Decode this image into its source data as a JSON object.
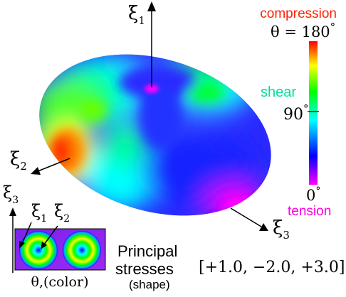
{
  "colorbar": {
    "compression_label": "compression",
    "theta_top_label": "θ = 180",
    "shear_label": "shear",
    "mid_label": "90",
    "zero_label": "0",
    "tension_label": "tension",
    "degree_symbol": "°",
    "colors": [
      "#ff00ff",
      "#0000ff",
      "#00ffff",
      "#00ff00",
      "#ffff00",
      "#ff0000"
    ]
  },
  "axes": {
    "xi1": {
      "symbol": "ξ",
      "subscript": "1"
    },
    "xi2": {
      "symbol": "ξ",
      "subscript": "2"
    },
    "xi3": {
      "symbol": "ξ",
      "subscript": "3"
    }
  },
  "inset": {
    "xi3": {
      "symbol": "ξ",
      "subscript": "3"
    },
    "xi1": {
      "symbol": "ξ",
      "subscript": "1"
    },
    "xi2": {
      "symbol": "ξ",
      "subscript": "2"
    },
    "caption": "θ,(color)"
  },
  "stresses": {
    "line1": "Principal",
    "line2": "stresses",
    "shape_label": "(shape)",
    "values": "[+1.0, −2.0, +3.0]"
  }
}
